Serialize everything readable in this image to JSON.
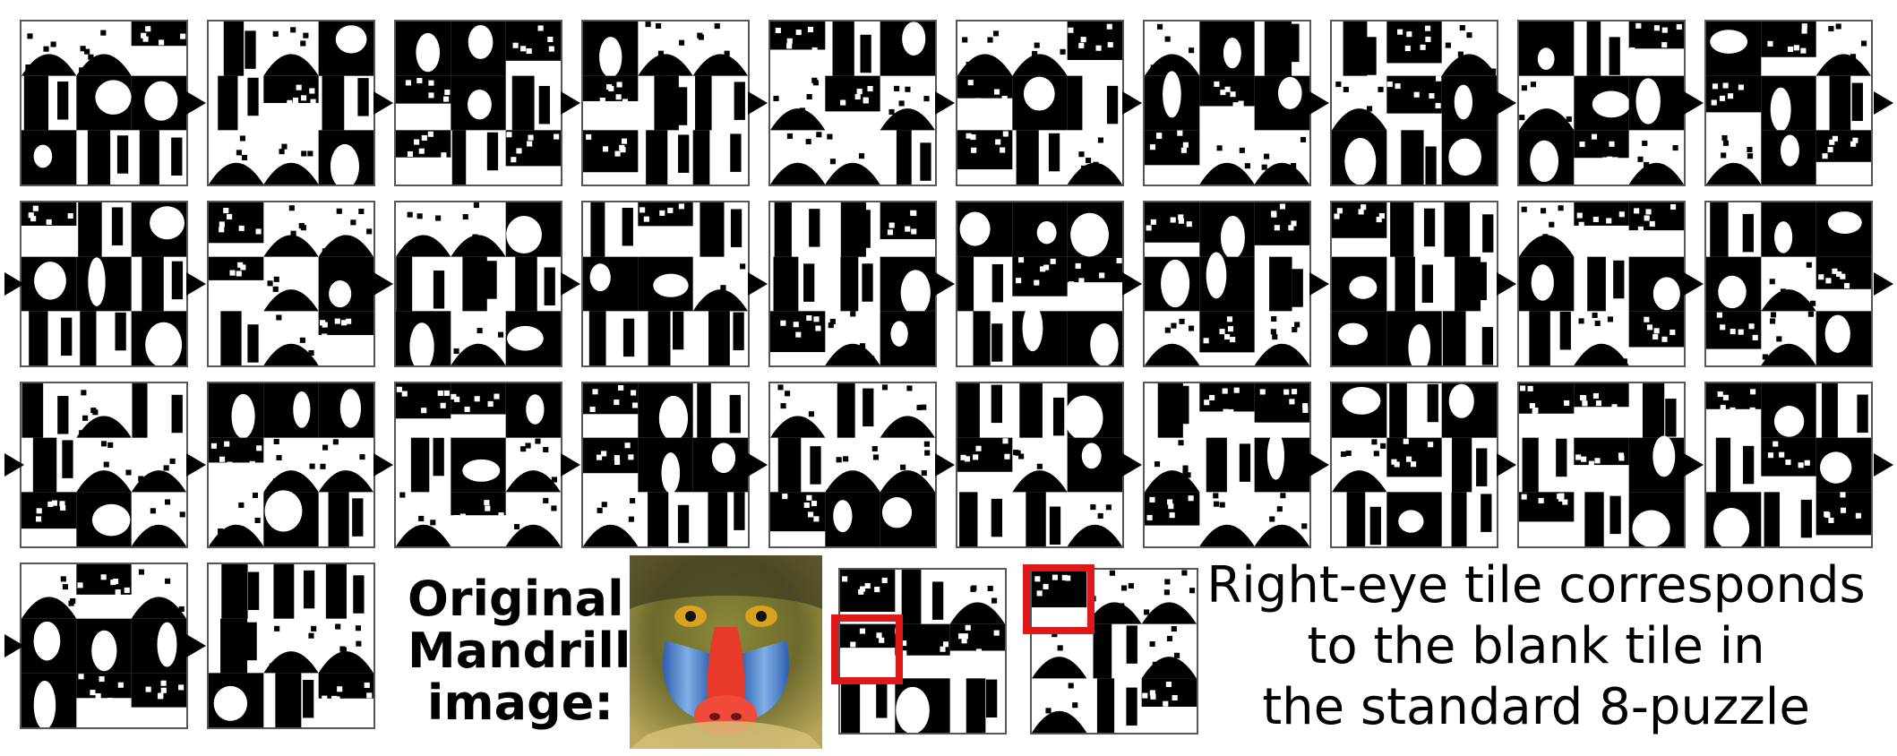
{
  "labels": {
    "original": "Original Mandrill image:",
    "caption_line1": "Right-eye tile corresponds",
    "caption_line2": "to the blank tile in",
    "caption_line3": "the standard 8-puzzle"
  },
  "sequence": {
    "step_count": 32,
    "arrow_icon": "triangle-right-icon"
  },
  "colors": {
    "highlight": "#e01818",
    "tile_border": "#555555",
    "foreground": "#000000",
    "background": "#ffffff"
  }
}
